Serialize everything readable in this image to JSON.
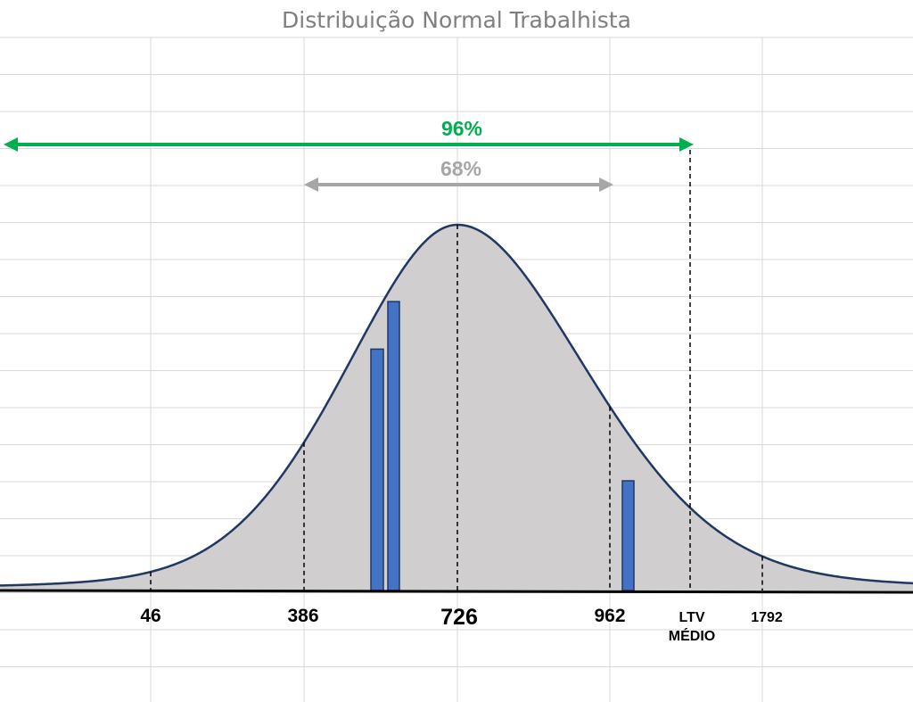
{
  "chart_data": {
    "type": "area",
    "title": "Distribuição Normal Trabalhista",
    "xlabel": "",
    "ylabel": "",
    "grid": true,
    "curve_color": "#1f3864",
    "fill_color": "#d0cece",
    "bar_color": "#4472c4",
    "mean_label": "726",
    "tick_labels": [
      {
        "id": "46",
        "lines": [
          "46"
        ],
        "style": "big"
      },
      {
        "id": "386",
        "lines": [
          "386"
        ],
        "style": "big"
      },
      {
        "id": "726",
        "lines": [
          "726"
        ],
        "style": "huge"
      },
      {
        "id": "962",
        "lines": [
          "962"
        ],
        "style": "big"
      },
      {
        "id": "ltv-medio",
        "lines": [
          "LTV",
          "MÉDIO"
        ],
        "style": "small"
      },
      {
        "id": "1792",
        "lines": [
          "1792"
        ],
        "style": "small"
      }
    ],
    "ranges": [
      {
        "id": "range-96",
        "label": "96%",
        "color": "#00b050"
      },
      {
        "id": "range-68",
        "label": "68%",
        "color": "#a6a6a6"
      }
    ],
    "bars": [
      {
        "id": "bar-1",
        "relative_height": 0.66
      },
      {
        "id": "bar-2",
        "relative_height": 0.79
      },
      {
        "id": "bar-3",
        "relative_height": 0.3
      }
    ]
  }
}
